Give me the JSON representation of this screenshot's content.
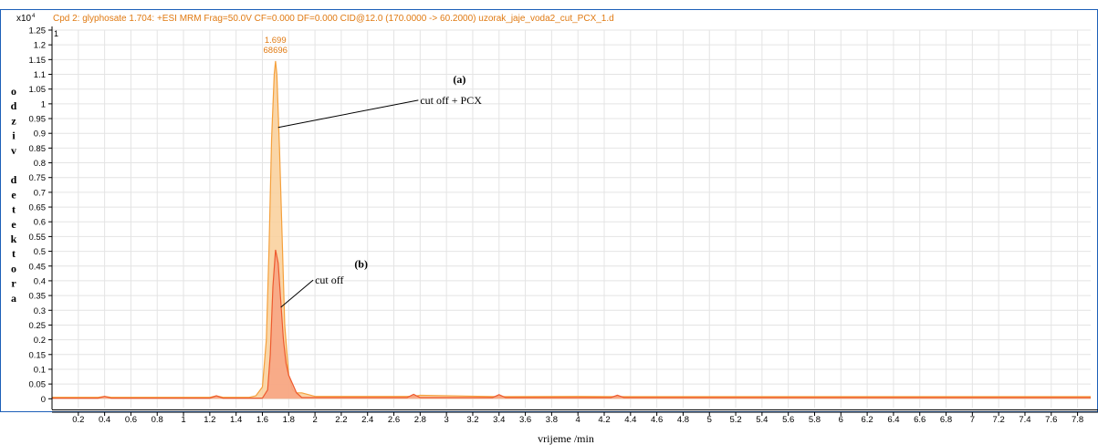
{
  "chart_data": {
    "type": "line",
    "title": "Cpd 2: glyphosate 1.704: +ESI MRM Frag=50.0V CF=0.000 DF=0.000 CID@12.0 (170.0000 -> 60.2000) uzorak_jaje_voda2_cut_PCX_1.d",
    "y_exponent": "x10",
    "y_exponent_power": "4",
    "trace_index_label": "1",
    "xlabel": "vrijeme /min",
    "ylabel": "odziv detektora",
    "ylabel_letters": [
      "o",
      "d",
      "z",
      "i",
      "v",
      "",
      "d",
      "e",
      "t",
      "e",
      "k",
      "t",
      "o",
      "r",
      "a"
    ],
    "xlim": [
      0,
      7.9
    ],
    "ylim": [
      -0.03,
      1.25
    ],
    "x_ticks": [
      0.2,
      0.4,
      0.6,
      0.8,
      1,
      1.2,
      1.4,
      1.6,
      1.8,
      2,
      2.2,
      2.4,
      2.6,
      2.8,
      3,
      3.2,
      3.4,
      3.6,
      3.8,
      4,
      4.2,
      4.4,
      4.6,
      4.8,
      5,
      5.2,
      5.4,
      5.6,
      5.8,
      6,
      6.2,
      6.4,
      6.6,
      6.8,
      7,
      7.2,
      7.4,
      7.6,
      7.8
    ],
    "y_ticks": [
      0,
      0.05,
      0.1,
      0.15,
      0.2,
      0.25,
      0.3,
      0.35,
      0.4,
      0.45,
      0.5,
      0.55,
      0.6,
      0.65,
      0.7,
      0.75,
      0.8,
      0.85,
      0.9,
      0.95,
      1,
      1.05,
      1.1,
      1.15,
      1.2,
      1.25
    ],
    "series": [
      {
        "name": "cut off + PCX",
        "color": "#f5a03c",
        "fill": "#f9cf99",
        "x": [
          0,
          0.35,
          0.4,
          0.45,
          1.2,
          1.25,
          1.3,
          1.5,
          1.55,
          1.6,
          1.63,
          1.65,
          1.67,
          1.69,
          1.7,
          1.71,
          1.73,
          1.75,
          1.77,
          1.8,
          1.83,
          1.86,
          1.9,
          2.0,
          2.75,
          2.8,
          3.4,
          4.0,
          4.3,
          7.9
        ],
        "y": [
          0.005,
          0.005,
          0.008,
          0.005,
          0.005,
          0.01,
          0.005,
          0.005,
          0.01,
          0.04,
          0.2,
          0.5,
          0.88,
          1.1,
          1.145,
          1.1,
          0.85,
          0.55,
          0.25,
          0.08,
          0.03,
          0.02,
          0.02,
          0.008,
          0.008,
          0.012,
          0.007,
          0.008,
          0.007,
          0.007
        ]
      },
      {
        "name": "cut off",
        "color": "#ee5a2e",
        "fill": "#f7a383",
        "x": [
          0,
          0.35,
          0.4,
          0.45,
          1.2,
          1.25,
          1.3,
          1.6,
          1.64,
          1.66,
          1.68,
          1.7,
          1.72,
          1.74,
          1.76,
          1.78,
          1.8,
          1.83,
          1.86,
          1.9,
          2.7,
          2.75,
          2.8,
          3.35,
          3.4,
          3.45,
          4.25,
          4.3,
          4.35,
          7.9
        ],
        "y": [
          0.002,
          0.002,
          0.008,
          0.002,
          0.002,
          0.01,
          0.002,
          0.002,
          0.03,
          0.15,
          0.38,
          0.505,
          0.46,
          0.33,
          0.2,
          0.12,
          0.08,
          0.05,
          0.02,
          0.004,
          0.004,
          0.015,
          0.004,
          0.004,
          0.014,
          0.004,
          0.004,
          0.012,
          0.004,
          0.004
        ]
      }
    ],
    "peak_label": {
      "x": 1.699,
      "y": 1.145,
      "time": "1.699",
      "area": "68696"
    },
    "annotations": [
      {
        "label": "(a)",
        "text": "cut off + PCX",
        "arrow_to_x": 1.72,
        "arrow_to_y": 0.92,
        "text_x": 2.8,
        "text_y": 1.0,
        "label_x": 3.05,
        "label_y": 1.07
      },
      {
        "label": "(b)",
        "text": "cut off",
        "arrow_to_x": 1.74,
        "arrow_to_y": 0.31,
        "text_x": 2.0,
        "text_y": 0.39,
        "label_x": 2.3,
        "label_y": 0.445
      }
    ],
    "grid": true,
    "legend": "none"
  }
}
